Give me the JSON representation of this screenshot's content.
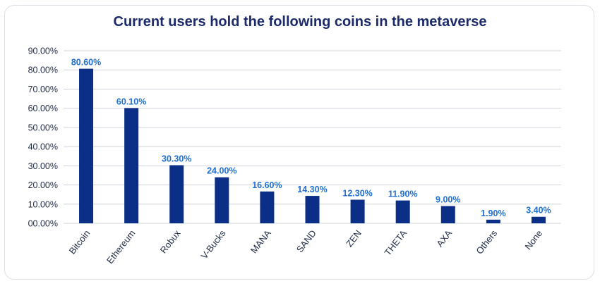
{
  "colors": {
    "bar": "#0b2f86",
    "data_label": "#1f6fd0",
    "gridline": "#cfd3da",
    "title": "#1b2a6b"
  },
  "chart_data": {
    "type": "bar",
    "title": "Current users hold the following coins in the metaverse",
    "xlabel": "",
    "ylabel": "",
    "categories": [
      "Bitcoin",
      "Ethereum",
      "Robux",
      "V-Bucks",
      "MANA",
      "SAND",
      "ZEN",
      "THETA",
      "AXA",
      "Others",
      "None"
    ],
    "values": [
      80.6,
      60.1,
      30.3,
      24.0,
      16.6,
      14.3,
      12.3,
      11.9,
      9.0,
      1.9,
      3.4
    ],
    "value_labels": [
      "80.60%",
      "60.10%",
      "30.30%",
      "24.00%",
      "16.60%",
      "14.30%",
      "12.30%",
      "11.90%",
      "9.00%",
      "1.90%",
      "3.40%"
    ],
    "yticks": [
      0,
      10,
      20,
      30,
      40,
      50,
      60,
      70,
      80,
      90
    ],
    "ytick_labels": [
      "00.00%",
      "10.00%",
      "20.00%",
      "30.00%",
      "40.00%",
      "50.00%",
      "60.00%",
      "70.00%",
      "80.00%",
      "90.00%"
    ],
    "ylim": [
      0,
      90
    ],
    "grid": true,
    "legend": "none"
  }
}
